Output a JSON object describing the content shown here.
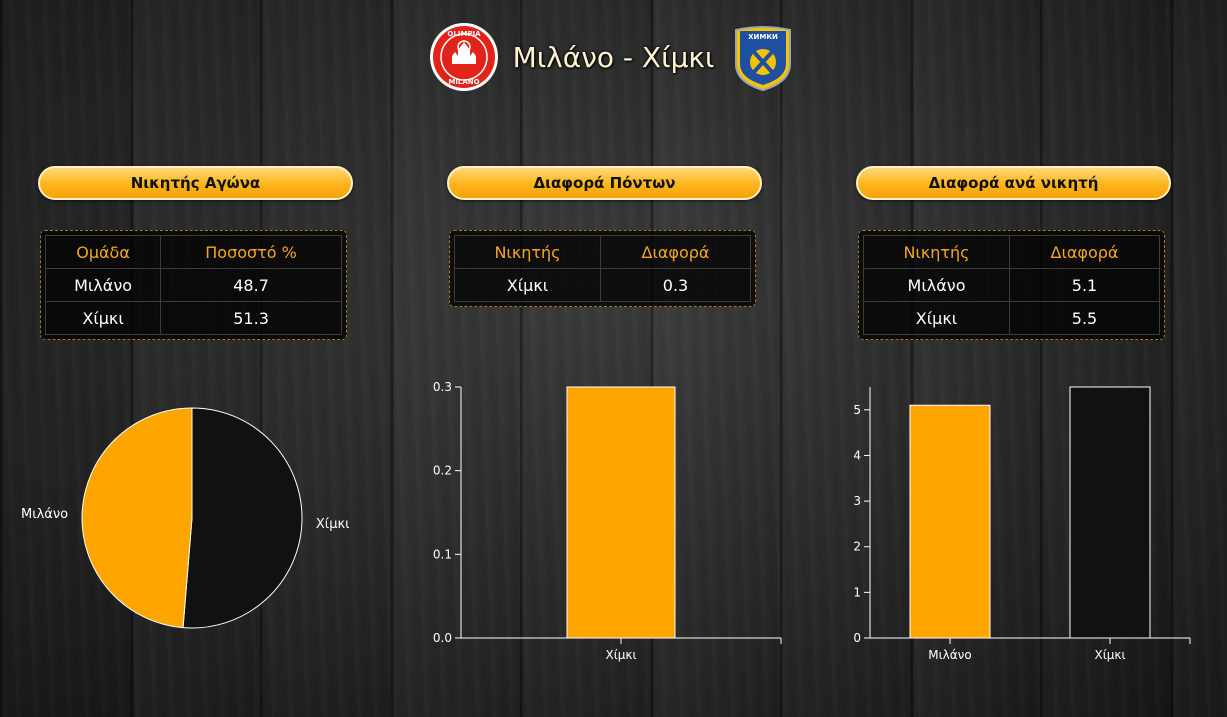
{
  "header": {
    "title": "Μιλάνο - Χίμκι",
    "home_logo": {
      "icon": "olimpia-milano-logo",
      "text_top": "OLIMPIA",
      "text_bottom": "MILANO",
      "color": "#e2231a"
    },
    "away_logo": {
      "icon": "khimki-logo",
      "text": "ХИМКИ",
      "colors": [
        "#1f4fa0",
        "#f5c400"
      ]
    }
  },
  "panels": {
    "winner": {
      "title": "Νικητής Αγώνα",
      "headers": [
        "Ομάδα",
        "Ποσοστό %"
      ],
      "rows": [
        [
          "Μιλάνο",
          "48.7"
        ],
        [
          "Χίμκι",
          "51.3"
        ]
      ]
    },
    "points_diff": {
      "title": "Διαφορά Πόντων",
      "headers": [
        "Νικητής",
        "Διαφορά"
      ],
      "rows": [
        [
          "Χίμκι",
          "0.3"
        ]
      ]
    },
    "diff_per_winner": {
      "title": "Διαφορά ανά νικητή",
      "headers": [
        "Νικητής",
        "Διαφορά"
      ],
      "rows": [
        [
          "Μιλάνο",
          "5.1"
        ],
        [
          "Χίμκι",
          "5.5"
        ]
      ]
    }
  },
  "colors": {
    "accent": "#ffa500",
    "dark": "#111111",
    "header_text": "#f5a623"
  },
  "chart_data": [
    {
      "type": "pie",
      "labels": [
        "Μιλάνο",
        "Χίμκι"
      ],
      "values": [
        48.7,
        51.3
      ],
      "colors": [
        "#ffa500",
        "#111111"
      ]
    },
    {
      "type": "bar",
      "categories": [
        "Χίμκι"
      ],
      "values": [
        0.3
      ],
      "ylim": [
        0,
        0.3
      ],
      "yticks": [
        "0.0",
        "0.1",
        "0.2",
        "0.3"
      ],
      "colors": [
        "#ffa500"
      ]
    },
    {
      "type": "bar",
      "categories": [
        "Μιλάνο",
        "Χίμκι"
      ],
      "values": [
        5.1,
        5.5
      ],
      "ylim": [
        0,
        5.5
      ],
      "yticks": [
        "0",
        "1",
        "2",
        "3",
        "4",
        "5"
      ],
      "colors": [
        "#ffa500",
        "#111111"
      ]
    }
  ]
}
